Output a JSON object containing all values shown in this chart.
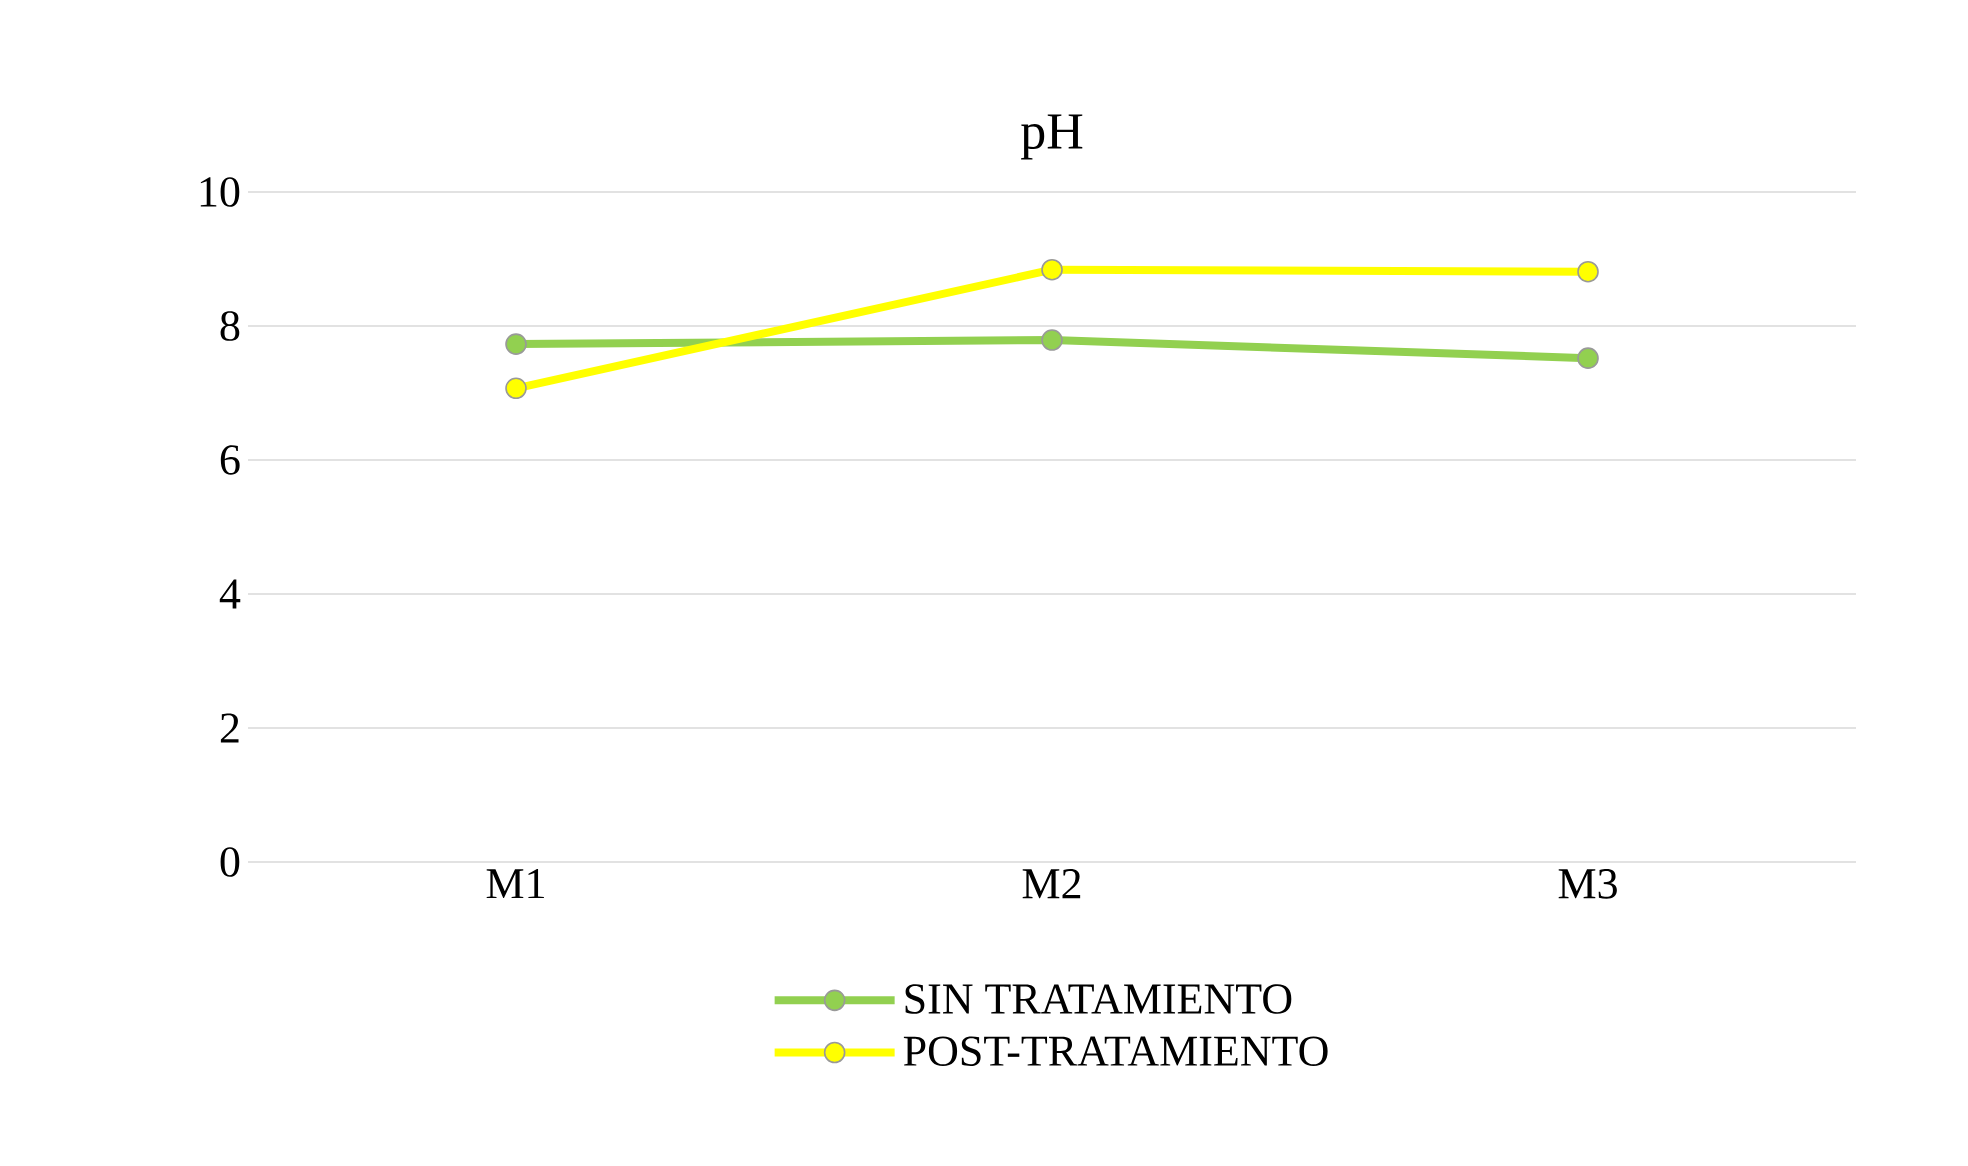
{
  "chart_data": {
    "type": "line",
    "title": "pH",
    "categories": [
      "M1",
      "M2",
      "M3"
    ],
    "series": [
      {
        "name": "SIN TRATAMIENTO",
        "color": "#92d050",
        "values": [
          7.73,
          7.79,
          7.52
        ]
      },
      {
        "name": "POST-TRATAMIENTO",
        "color": "#ffff00",
        "values": [
          7.07,
          8.84,
          8.81
        ]
      }
    ],
    "ylim": [
      0,
      10
    ],
    "yticks": [
      0,
      2,
      4,
      6,
      8,
      10
    ],
    "grid": "y",
    "legend": "bottom",
    "marker": "circle",
    "line_style": "solid"
  }
}
